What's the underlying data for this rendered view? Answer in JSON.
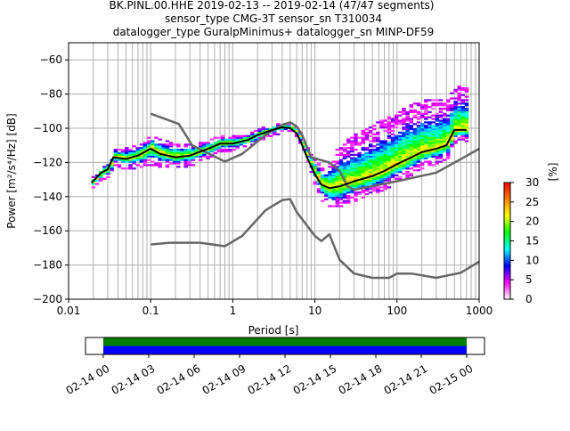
{
  "chart_data": {
    "type": "heatmap",
    "title_lines": [
      "BK.PINL.00.HHE   2019-02-13 -- 2019-02-14  (47/47 segments)",
      "sensor_type CMG-3T sensor_sn T310034",
      "datalogger_type GuralpMinimus+ datalogger_sn MINP-DF59"
    ],
    "xlabel": "Period [s]",
    "ylabel": "Power [m²/s⁴/Hz] [dB]",
    "xscale": "log",
    "xlim": [
      0.01,
      1000
    ],
    "ylim": [
      -200,
      -50
    ],
    "xticks": [
      0.01,
      0.1,
      1,
      10,
      100,
      1000
    ],
    "xtick_labels": [
      "0.01",
      "0.1",
      "1",
      "10",
      "100",
      "1000"
    ],
    "yticks": [
      -200,
      -180,
      -160,
      -140,
      -120,
      -100,
      -80,
      -60
    ],
    "ytick_labels": [
      "−200",
      "−180",
      "−160",
      "−140",
      "−120",
      "−100",
      "−80",
      "−60"
    ],
    "grid": true,
    "colorbar": {
      "label": "[%]",
      "range": [
        0,
        30
      ],
      "ticks": [
        "0",
        "5",
        "10",
        "15",
        "20",
        "25",
        "30"
      ],
      "colors": [
        "#ffffff",
        "#ff00ff",
        "#0000ff",
        "#00ffff",
        "#00ff00",
        "#ffff00",
        "#ff8000",
        "#ff0000"
      ]
    },
    "series": [
      {
        "name": "mean",
        "color": "#000000",
        "x": [
          0.019,
          0.025,
          0.03,
          0.035,
          0.05,
          0.07,
          0.1,
          0.13,
          0.2,
          0.3,
          0.5,
          0.7,
          1,
          1.5,
          2,
          3,
          4,
          5,
          6,
          7,
          8,
          10,
          12,
          15,
          20,
          30,
          50,
          70,
          100,
          150,
          200,
          300,
          400,
          500,
          700
        ],
        "y": [
          -132,
          -126,
          -124,
          -117,
          -118,
          -116,
          -112,
          -115,
          -117,
          -116,
          -112,
          -109,
          -109,
          -107,
          -104,
          -101,
          -99.5,
          -100,
          -103,
          -110,
          -117,
          -127,
          -133,
          -135,
          -134,
          -131,
          -128,
          -125,
          -121,
          -117,
          -114,
          -112,
          -110,
          -101,
          -101
        ]
      },
      {
        "name": "NHNM",
        "color": "#666666",
        "x": [
          0.1,
          0.22,
          0.32,
          0.8,
          1.3,
          2.5,
          4,
          5,
          6,
          7,
          9,
          15,
          20,
          25,
          30,
          100,
          300,
          600,
          1000
        ],
        "y": [
          -91.5,
          -97.5,
          -110,
          -119.5,
          -115,
          -104,
          -98,
          -96.5,
          -99,
          -104,
          -117,
          -120,
          -125,
          -134,
          -136,
          -131,
          -126,
          -118,
          -112
        ]
      },
      {
        "name": "NLNM",
        "color": "#666666",
        "x": [
          0.1,
          0.17,
          0.4,
          0.8,
          1.3,
          2.5,
          4,
          5,
          6,
          10,
          12,
          15,
          20,
          30,
          50,
          80,
          100,
          150,
          300,
          600,
          1000
        ],
        "y": [
          -168,
          -167,
          -167,
          -169,
          -163,
          -148,
          -142,
          -141.5,
          -149,
          -163,
          -166,
          -162,
          -177,
          -185,
          -187.5,
          -187.5,
          -185,
          -185,
          -187.5,
          -184.5,
          -178
        ]
      }
    ],
    "pdf_spread": {
      "x": [
        0.019,
        0.03,
        0.05,
        0.1,
        0.2,
        0.5,
        1,
        3,
        5,
        8,
        12,
        20,
        50,
        100,
        200,
        700
      ],
      "below_db": [
        3,
        4,
        6,
        9,
        6,
        5,
        4,
        3,
        2,
        4,
        12,
        12,
        10,
        10,
        9,
        6
      ],
      "above_db": [
        3,
        5,
        6,
        8,
        8,
        5,
        4,
        3,
        2,
        4,
        10,
        25,
        30,
        32,
        30,
        25
      ]
    },
    "time_axis": {
      "tick_labels": [
        "02-14 00",
        "02-14 03",
        "02-14 06",
        "02-14 09",
        "02-14 12",
        "02-14 15",
        "02-14 18",
        "02-14 21",
        "02-15 00"
      ],
      "coverage_colors": [
        "#008000",
        "#0000ff"
      ]
    }
  }
}
